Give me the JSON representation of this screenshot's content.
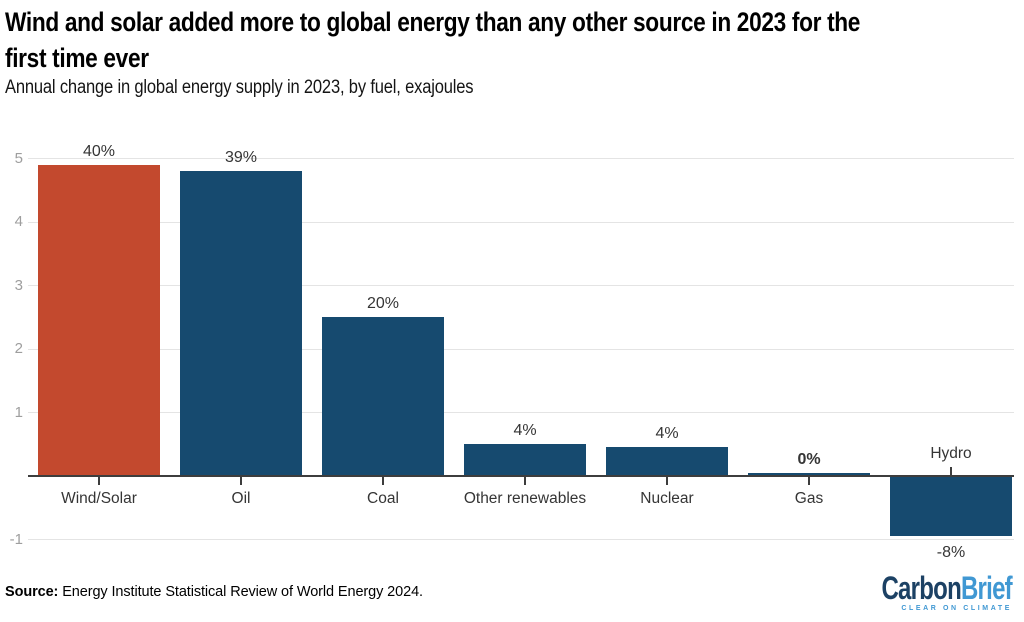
{
  "header": {
    "title_lines": [
      "Wind and solar added more to global energy than any other source in 2023 for the",
      "first time ever"
    ],
    "subtitle": "Annual change in global energy supply in 2023, by fuel, exajoules"
  },
  "chart_data": {
    "type": "bar",
    "title": "Wind and solar added more to global energy than any other source in 2023 for the first time ever",
    "subtitle": "Annual change in global energy supply in 2023, by fuel, exajoules",
    "unit": "exajoules",
    "categories": [
      "Wind/Solar",
      "Oil",
      "Coal",
      "Other renewables",
      "Nuclear",
      "Gas",
      "Hydro"
    ],
    "values": [
      4.9,
      4.8,
      2.5,
      0.5,
      0.45,
      0.05,
      -0.95
    ],
    "bar_labels": [
      "40%",
      "39%",
      "20%",
      "4%",
      "4%",
      "0%",
      "-8%"
    ],
    "bar_label_bold": [
      false,
      false,
      false,
      false,
      false,
      true,
      false
    ],
    "bar_colors": [
      "#c3492e",
      "#164a6f",
      "#164a6f",
      "#164a6f",
      "#164a6f",
      "#164a6f",
      "#164a6f"
    ],
    "highlight_color": "#c3492e",
    "default_color": "#164a6f",
    "yticks": [
      5,
      4,
      3,
      2,
      1,
      -1
    ],
    "ylim": [
      -1.45,
      5.4
    ],
    "baseline": 0,
    "grid": true,
    "legend": "none"
  },
  "footer": {
    "source_label": "Source:",
    "source_text": "Energy Institute Statistical Review of World Energy 2024."
  },
  "logo": {
    "carbon": "Carbon",
    "brief": "Brief",
    "tagline": "CLEAR ON CLIMATE"
  }
}
